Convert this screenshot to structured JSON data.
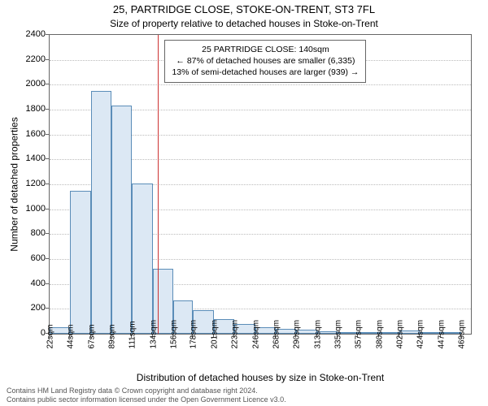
{
  "chart": {
    "type": "histogram",
    "title_main": "25, PARTRIDGE CLOSE, STOKE-ON-TRENT, ST3 7FL",
    "title_sub": "Size of property relative to detached houses in Stoke-on-Trent",
    "y_axis_label": "Number of detached properties",
    "x_axis_label": "Distribution of detached houses by size in Stoke-on-Trent",
    "ylim": [
      0,
      2400
    ],
    "ytick_step": 200,
    "y_ticks": [
      0,
      200,
      400,
      600,
      800,
      1000,
      1200,
      1400,
      1600,
      1800,
      2000,
      2200,
      2400
    ],
    "x_ticks": [
      "22sqm",
      "44sqm",
      "67sqm",
      "89sqm",
      "111sqm",
      "134sqm",
      "156sqm",
      "178sqm",
      "201sqm",
      "223sqm",
      "246sqm",
      "268sqm",
      "290sqm",
      "313sqm",
      "335sqm",
      "357sqm",
      "380sqm",
      "402sqm",
      "424sqm",
      "447sqm",
      "469sqm"
    ],
    "bar_color": "#dce8f4",
    "bar_border": "#5b8db8",
    "grid_color": "#bbbbbb",
    "axis_color": "#666666",
    "ref_line_color": "#cc3333",
    "ref_line_x": 140,
    "x_min": 22,
    "x_max": 480,
    "bars": [
      {
        "x0": 22,
        "x1": 44,
        "count": 50
      },
      {
        "x0": 44,
        "x1": 67,
        "count": 1150
      },
      {
        "x0": 67,
        "x1": 89,
        "count": 1950
      },
      {
        "x0": 89,
        "x1": 111,
        "count": 1830
      },
      {
        "x0": 111,
        "x1": 134,
        "count": 1205
      },
      {
        "x0": 134,
        "x1": 156,
        "count": 520
      },
      {
        "x0": 156,
        "x1": 178,
        "count": 270
      },
      {
        "x0": 178,
        "x1": 201,
        "count": 190
      },
      {
        "x0": 201,
        "x1": 223,
        "count": 120
      },
      {
        "x0": 223,
        "x1": 246,
        "count": 80
      },
      {
        "x0": 246,
        "x1": 268,
        "count": 55
      },
      {
        "x0": 268,
        "x1": 290,
        "count": 40
      },
      {
        "x0": 290,
        "x1": 313,
        "count": 35
      },
      {
        "x0": 313,
        "x1": 335,
        "count": 20
      },
      {
        "x0": 335,
        "x1": 357,
        "count": 15
      },
      {
        "x0": 357,
        "x1": 380,
        "count": 10
      },
      {
        "x0": 380,
        "x1": 402,
        "count": 8
      },
      {
        "x0": 402,
        "x1": 424,
        "count": 25
      },
      {
        "x0": 424,
        "x1": 447,
        "count": 5
      },
      {
        "x0": 447,
        "x1": 469,
        "count": 3
      }
    ],
    "info_box": {
      "line1": "25 PARTRIDGE CLOSE: 140sqm",
      "line2": "← 87% of detached houses are smaller (6,335)",
      "line3": "13% of semi-detached houses are larger (939) →"
    },
    "footer_line1": "Contains HM Land Registry data © Crown copyright and database right 2024.",
    "footer_line2": "Contains public sector information licensed under the Open Government Licence v3.0."
  }
}
